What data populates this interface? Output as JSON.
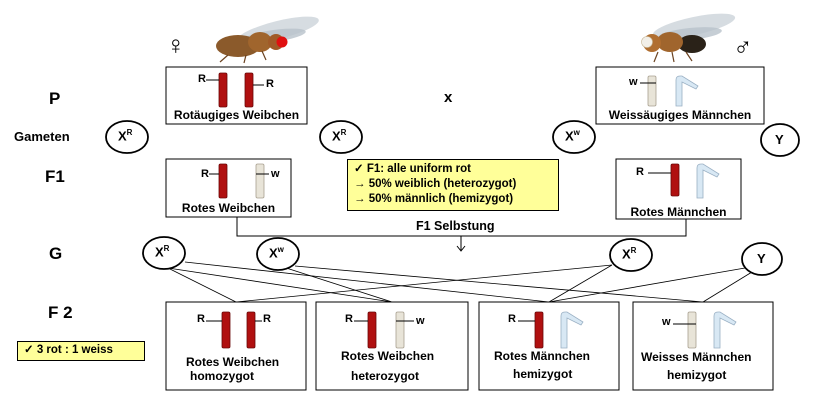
{
  "generations": {
    "p": "P",
    "gametes": "Gameten",
    "f1": "F1",
    "g": "G",
    "f2": "F 2"
  },
  "symbols": {
    "female": "♀",
    "male": "♂",
    "cross": "x"
  },
  "gametes": {
    "xr": "X",
    "xr_sup": "R",
    "xw": "X",
    "xw_sup": "w",
    "y": "Y"
  },
  "alleles": {
    "r": "R",
    "w": "w"
  },
  "parents": {
    "female_label": "Rotäugiges Weibchen",
    "male_label": "Weissäugiges Männchen"
  },
  "f1": {
    "female_label": "Rotes Weibchen",
    "male_label": "Rotes Männchen",
    "selfing_label": "F1 Selbstung",
    "note": [
      "✓  F1: alle uniform rot",
      "→ 50% weiblich (heterozygot)",
      "→ 50% männlich (hemizygot)"
    ]
  },
  "f2": {
    "boxes": [
      {
        "line1": "Rotes Weibchen",
        "line2": "homozygot"
      },
      {
        "line1": "Rotes Weibchen",
        "line2": "heterozygot"
      },
      {
        "line1": "Rotes Männchen",
        "line2": "hemizygot"
      },
      {
        "line1": "Weisses Männchen",
        "line2": "hemizygot"
      }
    ],
    "ratio_note": "✓  3 rot : 1 weiss"
  },
  "colors": {
    "red_chromosome": "#b01010",
    "white_chromosome": "#e8e4d8",
    "y_chromosome": "#d8e8f4",
    "note_bg": "#ffff99"
  },
  "icons": {
    "female_fly": "red-eyed-fly-icon",
    "male_fly": "white-eyed-fly-icon"
  }
}
